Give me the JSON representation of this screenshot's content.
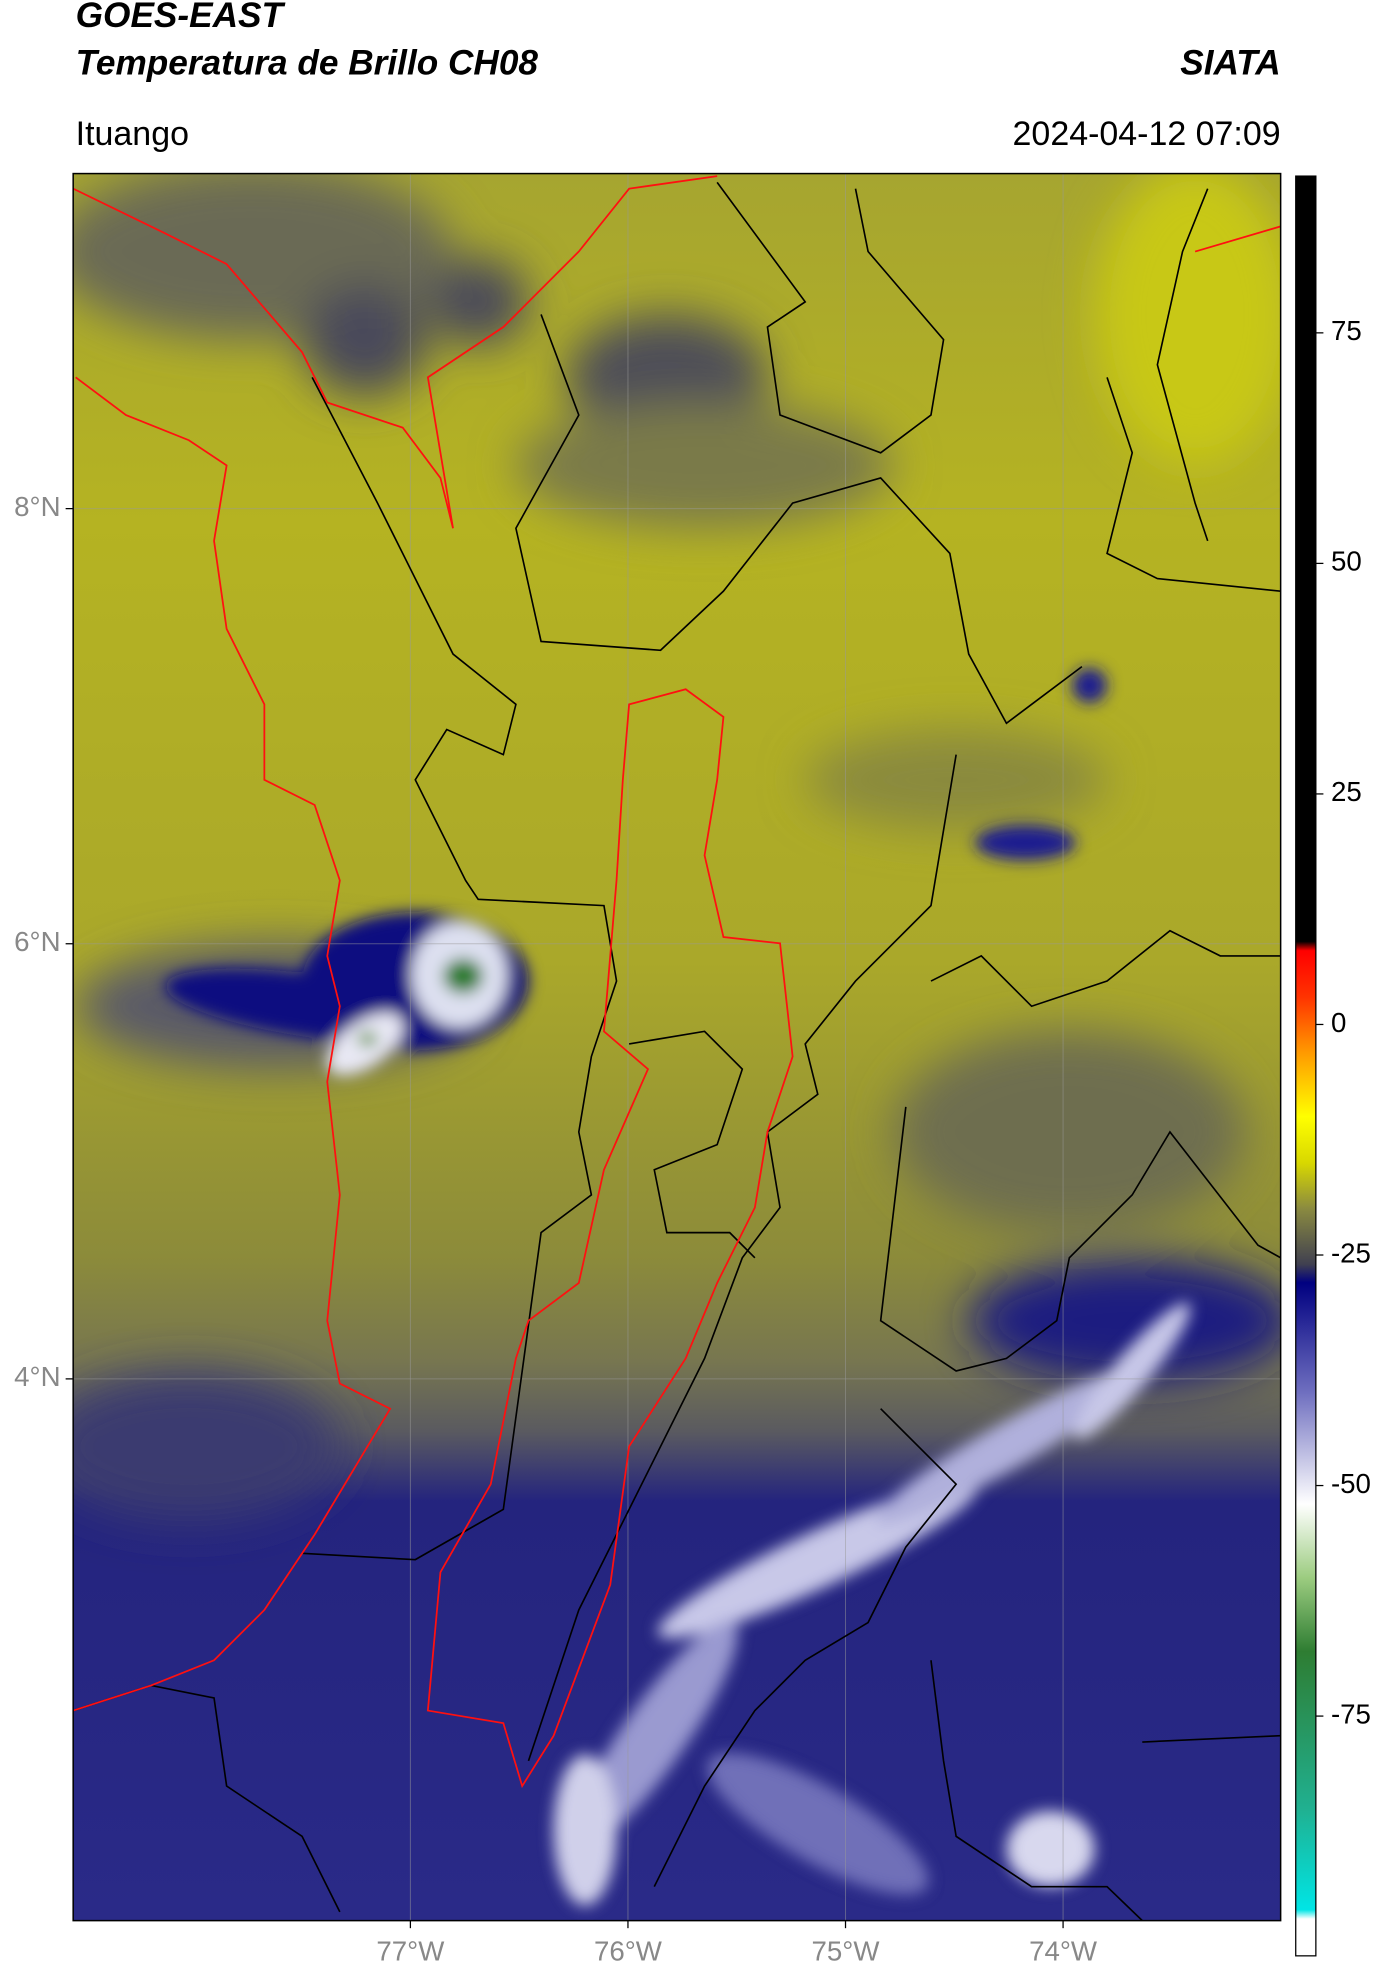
{
  "header": {
    "title": "GOES-EAST",
    "subtitle": "Temperatura de Brillo CH08",
    "agency": "SIATA",
    "location": "Ituango",
    "datetime": "2024-04-12 07:09"
  },
  "map": {
    "xlim": [
      -78.55,
      -73.0
    ],
    "ylim": [
      1.51,
      9.54
    ],
    "xticks": [
      {
        "value": -77,
        "label": "77°W"
      },
      {
        "value": -76,
        "label": "76°W"
      },
      {
        "value": -75,
        "label": "75°W"
      },
      {
        "value": -74,
        "label": "74°W"
      }
    ],
    "yticks": [
      {
        "value": 8,
        "label": "8°N"
      },
      {
        "value": 6,
        "label": "6°N"
      },
      {
        "value": 4,
        "label": "4°N"
      }
    ],
    "grid": true
  },
  "colorbar": {
    "lim": [
      -101,
      92
    ],
    "ticks": [
      75,
      50,
      25,
      0,
      -25,
      -50,
      -75
    ],
    "stops": [
      {
        "value": -101,
        "color": "#ffffff"
      },
      {
        "value": -97,
        "color": "#ffffff"
      },
      {
        "value": -96,
        "color": "#00e5e5"
      },
      {
        "value": -85,
        "color": "#20b090"
      },
      {
        "value": -68,
        "color": "#2e7d32"
      },
      {
        "value": -60,
        "color": "#9ccc80"
      },
      {
        "value": -52,
        "color": "#ffffff"
      },
      {
        "value": -40,
        "color": "#7070c0"
      },
      {
        "value": -28,
        "color": "#000080"
      },
      {
        "value": -26,
        "color": "#404050"
      },
      {
        "value": -20,
        "color": "#8a8a40"
      },
      {
        "value": -15,
        "color": "#d8d800"
      },
      {
        "value": -10,
        "color": "#ffff00"
      },
      {
        "value": -3,
        "color": "#ff9900"
      },
      {
        "value": 3,
        "color": "#ff3300"
      },
      {
        "value": 8,
        "color": "#ff0000"
      },
      {
        "value": 9,
        "color": "#000000"
      },
      {
        "value": 92,
        "color": "#000000"
      }
    ]
  }
}
